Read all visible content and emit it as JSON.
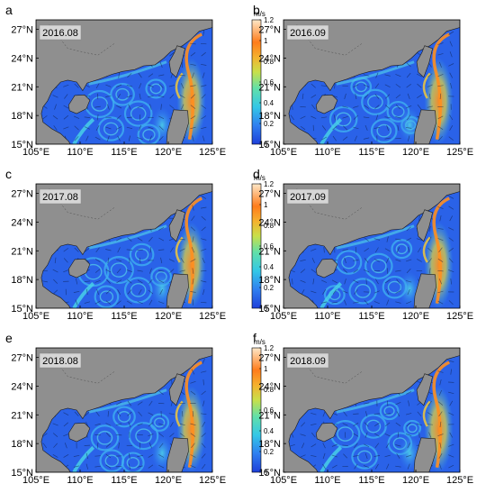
{
  "chart_data": {
    "type": "heatmap",
    "colorbar": {
      "unit": "m/s",
      "range": [
        0,
        1.2
      ],
      "ticks": [
        "0",
        "0.2",
        "0.4",
        "0.6",
        "0.8",
        "1",
        "1.2"
      ]
    },
    "x_range": [
      105,
      125
    ],
    "y_range": [
      15,
      28
    ],
    "x_ticks": [
      "105°E",
      "110°E",
      "115°E",
      "120°E",
      "125°E"
    ],
    "y_ticks": [
      "15°N",
      "18°N",
      "21°N",
      "24°N",
      "27°N"
    ],
    "colors": {
      "land": "#8f8f8f",
      "ocean_base": "#2a62e8",
      "label_box": "#d6d6d6",
      "colormap": [
        "#1e3fd9",
        "#2f7ff0",
        "#34c8e6",
        "#62e0a8",
        "#c8e04a",
        "#f5b12e",
        "#ff7c1a",
        "#fde8c8"
      ]
    },
    "panels": [
      {
        "letter": "a",
        "date": "2016.08"
      },
      {
        "letter": "b",
        "date": "2016.09"
      },
      {
        "letter": "c",
        "date": "2017.08"
      },
      {
        "letter": "d",
        "date": "2017.09"
      },
      {
        "letter": "e",
        "date": "2018.08"
      },
      {
        "letter": "f",
        "date": "2018.09"
      }
    ]
  }
}
